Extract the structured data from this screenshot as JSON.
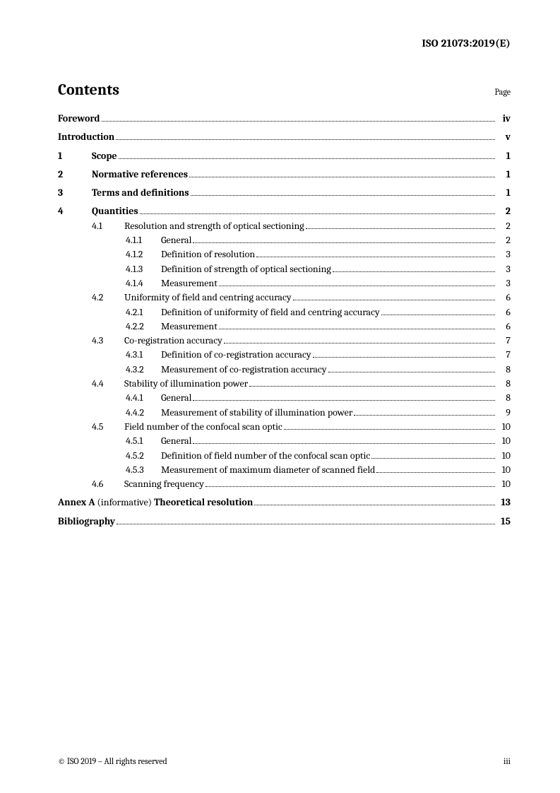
{
  "doc_id": "ISO 21073:2019(E)",
  "contents_title": "Contents",
  "page_label": "Page",
  "toc": [
    {
      "kind": "main",
      "bold": true,
      "spaced": false,
      "num": "",
      "title": "Foreword",
      "page": "iv",
      "pg_bold": true
    },
    {
      "kind": "main",
      "bold": true,
      "spaced": true,
      "num": "",
      "title": "Introduction",
      "page": "v",
      "pg_bold": true
    },
    {
      "kind": "main",
      "bold": true,
      "spaced": true,
      "num": "1",
      "title": "Scope",
      "page": "1",
      "pg_bold": true
    },
    {
      "kind": "main",
      "bold": true,
      "spaced": true,
      "num": "2",
      "title": "Normative references",
      "page": "1",
      "pg_bold": true
    },
    {
      "kind": "main",
      "bold": true,
      "spaced": true,
      "num": "3",
      "title": "Terms and definitions",
      "page": "1",
      "pg_bold": true
    },
    {
      "kind": "main",
      "bold": true,
      "spaced": true,
      "num": "4",
      "title": "Quantities",
      "page": "2",
      "pg_bold": true
    },
    {
      "kind": "sub",
      "bold": false,
      "spaced": false,
      "num": "4.1",
      "title": "Resolution and strength of optical sectioning",
      "page": "2",
      "pg_bold": false
    },
    {
      "kind": "subsub",
      "bold": false,
      "spaced": false,
      "num": "4.1.1",
      "title": "General",
      "page": "2",
      "pg_bold": false
    },
    {
      "kind": "subsub",
      "bold": false,
      "spaced": false,
      "num": "4.1.2",
      "title": "Definition of resolution",
      "page": "3",
      "pg_bold": false
    },
    {
      "kind": "subsub",
      "bold": false,
      "spaced": false,
      "num": "4.1.3",
      "title": "Definition of strength of optical sectioning",
      "page": "3",
      "pg_bold": false
    },
    {
      "kind": "subsub",
      "bold": false,
      "spaced": false,
      "num": "4.1.4",
      "title": "Measurement",
      "page": "3",
      "pg_bold": false
    },
    {
      "kind": "sub",
      "bold": false,
      "spaced": false,
      "num": "4.2",
      "title": "Uniformity of field and centring accuracy",
      "page": "6",
      "pg_bold": false
    },
    {
      "kind": "subsub",
      "bold": false,
      "spaced": false,
      "num": "4.2.1",
      "title": "Definition of uniformity of field and centring accuracy",
      "page": "6",
      "pg_bold": false
    },
    {
      "kind": "subsub",
      "bold": false,
      "spaced": false,
      "num": "4.2.2",
      "title": "Measurement",
      "page": "6",
      "pg_bold": false
    },
    {
      "kind": "sub",
      "bold": false,
      "spaced": false,
      "num": "4.3",
      "title": "Co-registration accuracy",
      "page": "7",
      "pg_bold": false
    },
    {
      "kind": "subsub",
      "bold": false,
      "spaced": false,
      "num": "4.3.1",
      "title": "Definition of co-registration accuracy",
      "page": "7",
      "pg_bold": false
    },
    {
      "kind": "subsub",
      "bold": false,
      "spaced": false,
      "num": "4.3.2",
      "title": "Measurement of co-registration accuracy",
      "page": "8",
      "pg_bold": false
    },
    {
      "kind": "sub",
      "bold": false,
      "spaced": false,
      "num": "4.4",
      "title": "Stability of illumination power",
      "page": "8",
      "pg_bold": false
    },
    {
      "kind": "subsub",
      "bold": false,
      "spaced": false,
      "num": "4.4.1",
      "title": "General",
      "page": "8",
      "pg_bold": false
    },
    {
      "kind": "subsub",
      "bold": false,
      "spaced": false,
      "num": "4.4.2",
      "title": "Measurement of stability of illumination power",
      "page": "9",
      "pg_bold": false
    },
    {
      "kind": "sub",
      "bold": false,
      "spaced": false,
      "num": "4.5",
      "title": "Field number of the confocal scan optic",
      "page": "10",
      "pg_bold": false
    },
    {
      "kind": "subsub",
      "bold": false,
      "spaced": false,
      "num": "4.5.1",
      "title": "General",
      "page": "10",
      "pg_bold": false
    },
    {
      "kind": "subsub",
      "bold": false,
      "spaced": false,
      "num": "4.5.2",
      "title": "Definition of field number of the confocal scan optic",
      "page": "10",
      "pg_bold": false
    },
    {
      "kind": "subsub",
      "bold": false,
      "spaced": false,
      "num": "4.5.3",
      "title": "Measurement of maximum diameter of scanned field",
      "page": "10",
      "pg_bold": false
    },
    {
      "kind": "sub",
      "bold": false,
      "spaced": false,
      "num": "4.6",
      "title": "Scanning frequency",
      "page": "10",
      "pg_bold": false
    }
  ],
  "annex": {
    "prefix_bold": "Annex A",
    "mid_normal": " (informative) ",
    "suffix_bold": "Theoretical resolution",
    "page": "13"
  },
  "bibliography": {
    "title": "Bibliography",
    "page": "15"
  },
  "footer_left": "© ISO 2019 – All rights reserved",
  "footer_right": "iii"
}
